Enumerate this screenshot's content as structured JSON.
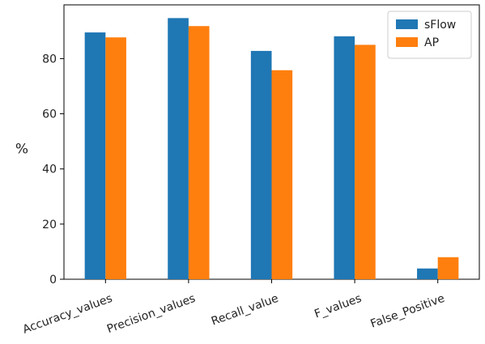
{
  "chart_data": {
    "type": "bar",
    "title": "",
    "xlabel": "",
    "ylabel": "%",
    "categories": [
      "Accuracy_values",
      "Precision_values",
      "Recall_value",
      "F_values",
      "False_Positive"
    ],
    "series": [
      {
        "name": "sFlow",
        "color": "#1f77b4",
        "values": [
          89.5,
          94.7,
          82.8,
          88.1,
          3.9
        ]
      },
      {
        "name": "AP",
        "color": "#ff7f0e",
        "values": [
          87.7,
          91.8,
          75.8,
          85.0,
          8.0
        ]
      }
    ],
    "ylim": [
      0,
      99.5
    ],
    "yticks": [
      0,
      20,
      40,
      60,
      80
    ],
    "ytick_labels": [
      "0",
      "20",
      "40",
      "60",
      "80"
    ],
    "grid": false,
    "legend": "top-right",
    "x_tick_rotation_deg": -20
  }
}
